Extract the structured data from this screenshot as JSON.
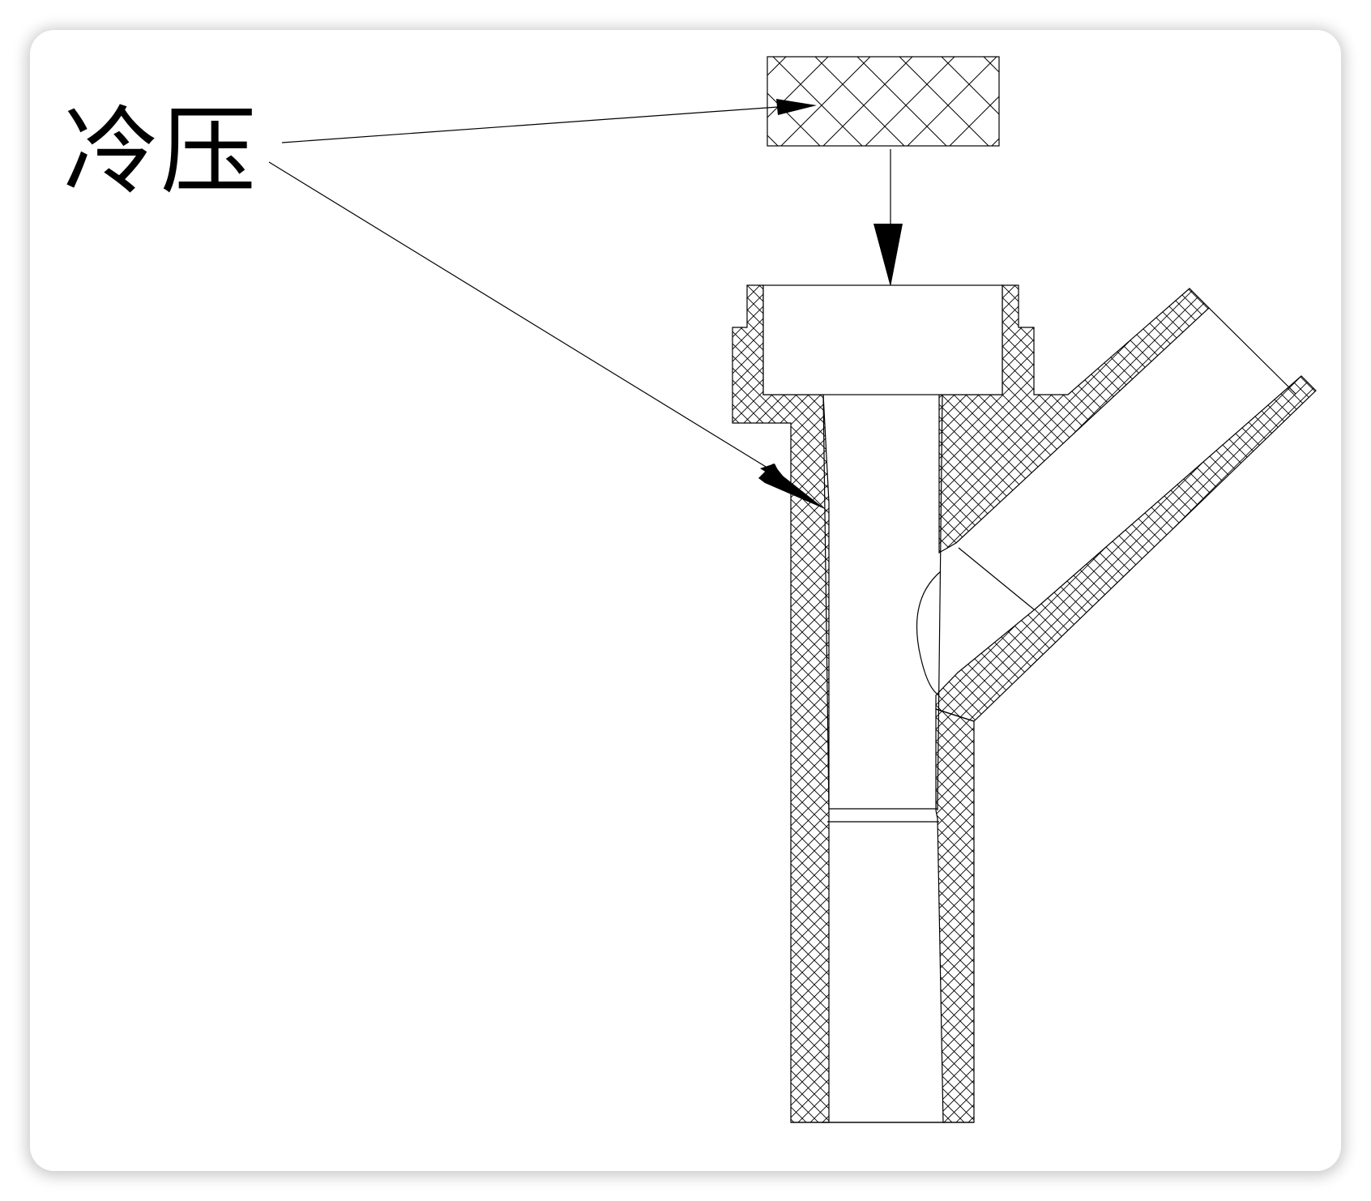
{
  "label": {
    "text": "冷压"
  },
  "colors": {
    "background": "#ffffff",
    "stroke": "#000000",
    "hatch": "#000000"
  }
}
